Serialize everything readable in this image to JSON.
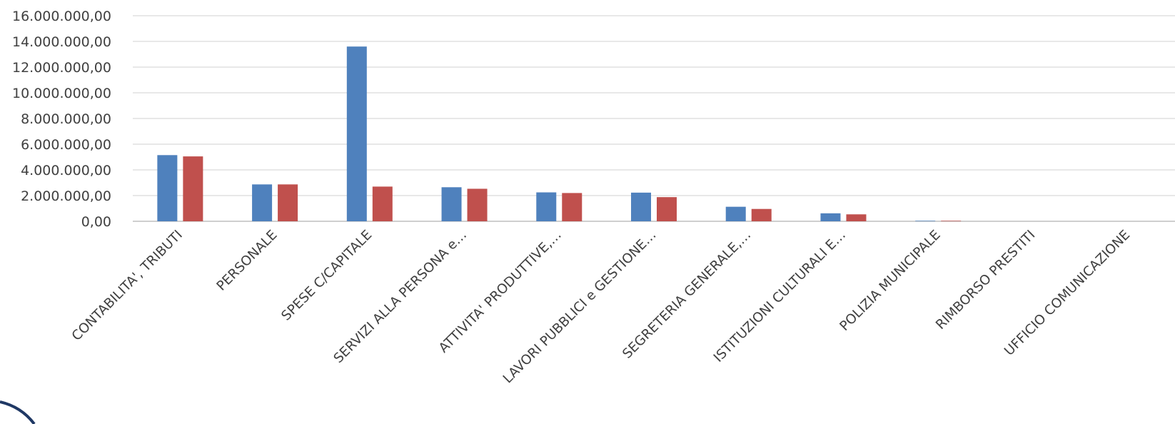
{
  "chart_data": {
    "type": "bar",
    "categories": [
      "CONTABILITA', TRIBUTI",
      "PERSONALE",
      "SPESE C/CAPITALE",
      "SERVIZI ALLA PERSONA e…",
      "ATTIVITA' PRODUTTIVE,…",
      "LAVORI PUBBLICI e GESTIONE…",
      "SEGRETERIA GENERALE,…",
      "ISTITUZIONI CULTURALI E…",
      "POLIZIA MUNICIPALE",
      "RIMBORSO PRESTITI",
      "UFFICIO COMUNICAZIONE"
    ],
    "series": [
      {
        "color": "#4f81bd",
        "values": [
          5150000,
          2870000,
          13600000,
          2650000,
          2250000,
          2230000,
          1130000,
          620000,
          40000,
          0,
          0
        ]
      },
      {
        "color": "#c0504d",
        "values": [
          5050000,
          2870000,
          2700000,
          2530000,
          2200000,
          1880000,
          960000,
          540000,
          40000,
          0,
          0
        ]
      }
    ],
    "yticks": [
      "0,00",
      "2.000.000,00",
      "4.000.000,00",
      "6.000.000,00",
      "8.000.000,00",
      "10.000.000,00",
      "12.000.000,00",
      "14.000.000,00",
      "16.000.000,00"
    ],
    "ylim": [
      0,
      16000000
    ],
    "grid": true,
    "legend": false,
    "title": "",
    "xlabel": "",
    "ylabel": ""
  },
  "decoration": {
    "corner_arc_color": "#1f3864"
  }
}
